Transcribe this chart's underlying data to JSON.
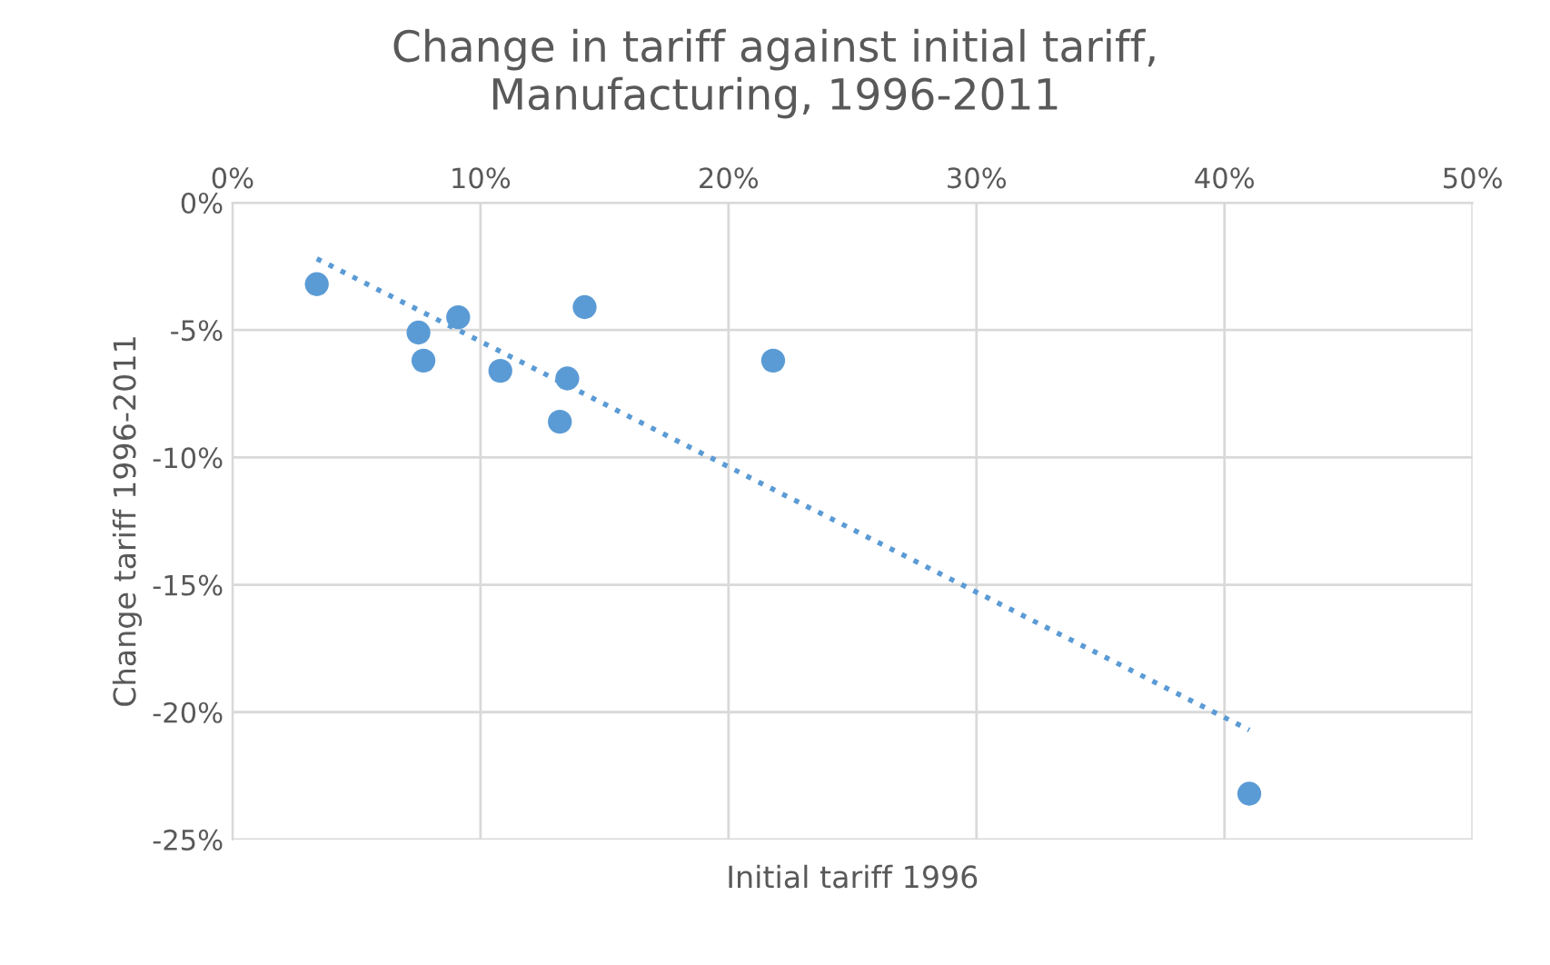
{
  "chart_data": {
    "type": "scatter",
    "title": "Change in tariff against initial tariff,\nManufacturing, 1996-2011",
    "xlabel": "Initial tariff 1996",
    "ylabel": "Change tariff 1996-2011",
    "series": [
      {
        "color": "#5b9bd5",
        "marker": "circle",
        "x": [
          3.4,
          7.5,
          7.7,
          9.1,
          10.8,
          13.5,
          13.2,
          14.2,
          21.8,
          41.0
        ],
        "values": [
          -3.2,
          -5.1,
          -6.2,
          -4.5,
          -6.6,
          -6.9,
          -8.6,
          -4.1,
          -6.2,
          -23.2
        ]
      },
      {
        "type": "line",
        "color": "#5b9bd5",
        "line_style": "dotted",
        "marker": "none",
        "x": [
          3.4,
          41.0
        ],
        "values": [
          -2.2,
          -20.7
        ]
      }
    ],
    "xlim": [
      0,
      50
    ],
    "ylim": [
      -25,
      0
    ],
    "xticks": [
      {
        "value": 0,
        "label": "0%"
      },
      {
        "value": 10,
        "label": "10%"
      },
      {
        "value": 20,
        "label": "20%"
      },
      {
        "value": 30,
        "label": "30%"
      },
      {
        "value": 40,
        "label": "40%"
      },
      {
        "value": 50,
        "label": "50%"
      }
    ],
    "yticks": [
      {
        "value": -25,
        "label": "-25%"
      },
      {
        "value": -20,
        "label": "-20%"
      },
      {
        "value": -15,
        "label": "-15%"
      },
      {
        "value": -10,
        "label": "-10%"
      },
      {
        "value": -5,
        "label": "-5%"
      },
      {
        "value": 0,
        "label": "0%"
      }
    ],
    "grid": true
  }
}
